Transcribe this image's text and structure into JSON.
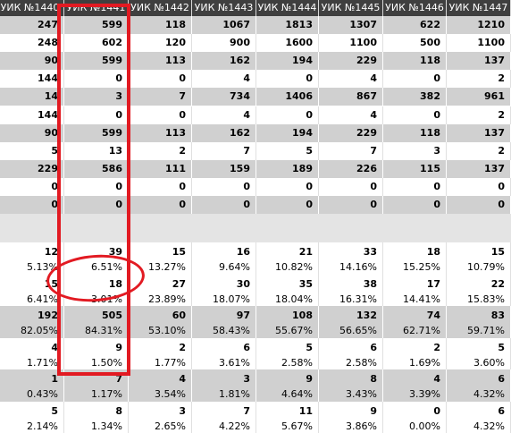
{
  "columns": [
    "УИК №1440",
    "УИК №1441",
    "УИК №1442",
    "УИК №1443",
    "УИК №1444",
    "УИК №1445",
    "УИК №1446",
    "УИК №1447"
  ],
  "rows": [
    {
      "style": "dark",
      "cells": [
        [
          "247"
        ],
        [
          "599"
        ],
        [
          "118"
        ],
        [
          "1067"
        ],
        [
          "1813"
        ],
        [
          "1307"
        ],
        [
          "622"
        ],
        [
          "1210"
        ]
      ]
    },
    {
      "style": "light",
      "cells": [
        [
          "248"
        ],
        [
          "602"
        ],
        [
          "120"
        ],
        [
          "900"
        ],
        [
          "1600"
        ],
        [
          "1100"
        ],
        [
          "500"
        ],
        [
          "1100"
        ]
      ]
    },
    {
      "style": "dark",
      "cells": [
        [
          "90"
        ],
        [
          "599"
        ],
        [
          "113"
        ],
        [
          "162"
        ],
        [
          "194"
        ],
        [
          "229"
        ],
        [
          "118"
        ],
        [
          "137"
        ]
      ]
    },
    {
      "style": "light",
      "cells": [
        [
          "144"
        ],
        [
          "0"
        ],
        [
          "0"
        ],
        [
          "4"
        ],
        [
          "0"
        ],
        [
          "4"
        ],
        [
          "0"
        ],
        [
          "2"
        ]
      ]
    },
    {
      "style": "dark",
      "cells": [
        [
          "14"
        ],
        [
          "3"
        ],
        [
          "7"
        ],
        [
          "734"
        ],
        [
          "1406"
        ],
        [
          "867"
        ],
        [
          "382"
        ],
        [
          "961"
        ]
      ]
    },
    {
      "style": "light",
      "cells": [
        [
          "144"
        ],
        [
          "0"
        ],
        [
          "0"
        ],
        [
          "4"
        ],
        [
          "0"
        ],
        [
          "4"
        ],
        [
          "0"
        ],
        [
          "2"
        ]
      ]
    },
    {
      "style": "dark",
      "cells": [
        [
          "90"
        ],
        [
          "599"
        ],
        [
          "113"
        ],
        [
          "162"
        ],
        [
          "194"
        ],
        [
          "229"
        ],
        [
          "118"
        ],
        [
          "137"
        ]
      ]
    },
    {
      "style": "light",
      "cells": [
        [
          "5"
        ],
        [
          "13"
        ],
        [
          "2"
        ],
        [
          "7"
        ],
        [
          "5"
        ],
        [
          "7"
        ],
        [
          "3"
        ],
        [
          "2"
        ]
      ]
    },
    {
      "style": "dark",
      "cells": [
        [
          "229"
        ],
        [
          "586"
        ],
        [
          "111"
        ],
        [
          "159"
        ],
        [
          "189"
        ],
        [
          "226"
        ],
        [
          "115"
        ],
        [
          "137"
        ]
      ]
    },
    {
      "style": "light",
      "cells": [
        [
          "0"
        ],
        [
          "0"
        ],
        [
          "0"
        ],
        [
          "0"
        ],
        [
          "0"
        ],
        [
          "0"
        ],
        [
          "0"
        ],
        [
          "0"
        ]
      ]
    },
    {
      "style": "dark",
      "cells": [
        [
          "0"
        ],
        [
          "0"
        ],
        [
          "0"
        ],
        [
          "0"
        ],
        [
          "0"
        ],
        [
          "0"
        ],
        [
          "0"
        ],
        [
          "0"
        ]
      ]
    },
    {
      "style": "blank",
      "cells": []
    },
    {
      "style": "light",
      "pct": true,
      "cells": [
        [
          "12",
          "5.13%"
        ],
        [
          "39",
          "6.51%"
        ],
        [
          "15",
          "13.27%"
        ],
        [
          "16",
          "9.64%"
        ],
        [
          "21",
          "10.82%"
        ],
        [
          "33",
          "14.16%"
        ],
        [
          "18",
          "15.25%"
        ],
        [
          "15",
          "10.79%"
        ]
      ]
    },
    {
      "style": "light",
      "pct": true,
      "cells": [
        [
          "15",
          "6.41%"
        ],
        [
          "18",
          "3.01%"
        ],
        [
          "27",
          "23.89%"
        ],
        [
          "30",
          "18.07%"
        ],
        [
          "35",
          "18.04%"
        ],
        [
          "38",
          "16.31%"
        ],
        [
          "17",
          "14.41%"
        ],
        [
          "22",
          "15.83%"
        ]
      ]
    },
    {
      "style": "dark",
      "pct": true,
      "cells": [
        [
          "192",
          "82.05%"
        ],
        [
          "505",
          "84.31%"
        ],
        [
          "60",
          "53.10%"
        ],
        [
          "97",
          "58.43%"
        ],
        [
          "108",
          "55.67%"
        ],
        [
          "132",
          "56.65%"
        ],
        [
          "74",
          "62.71%"
        ],
        [
          "83",
          "59.71%"
        ]
      ]
    },
    {
      "style": "light",
      "pct": true,
      "cells": [
        [
          "4",
          "1.71%"
        ],
        [
          "9",
          "1.50%"
        ],
        [
          "2",
          "1.77%"
        ],
        [
          "6",
          "3.61%"
        ],
        [
          "5",
          "2.58%"
        ],
        [
          "6",
          "2.58%"
        ],
        [
          "2",
          "1.69%"
        ],
        [
          "5",
          "3.60%"
        ]
      ]
    },
    {
      "style": "dark",
      "pct": true,
      "cells": [
        [
          "1",
          "0.43%"
        ],
        [
          "7",
          "1.17%"
        ],
        [
          "4",
          "3.54%"
        ],
        [
          "3",
          "1.81%"
        ],
        [
          "9",
          "4.64%"
        ],
        [
          "8",
          "3.43%"
        ],
        [
          "4",
          "3.39%"
        ],
        [
          "6",
          "4.32%"
        ]
      ]
    },
    {
      "style": "light",
      "pct": true,
      "cells": [
        [
          "5",
          "2.14%"
        ],
        [
          "8",
          "1.34%"
        ],
        [
          "3",
          "2.65%"
        ],
        [
          "7",
          "4.22%"
        ],
        [
          "11",
          "5.67%"
        ],
        [
          "9",
          "3.86%"
        ],
        [
          "0",
          "0.00%"
        ],
        [
          "6",
          "4.32%"
        ]
      ]
    }
  ]
}
